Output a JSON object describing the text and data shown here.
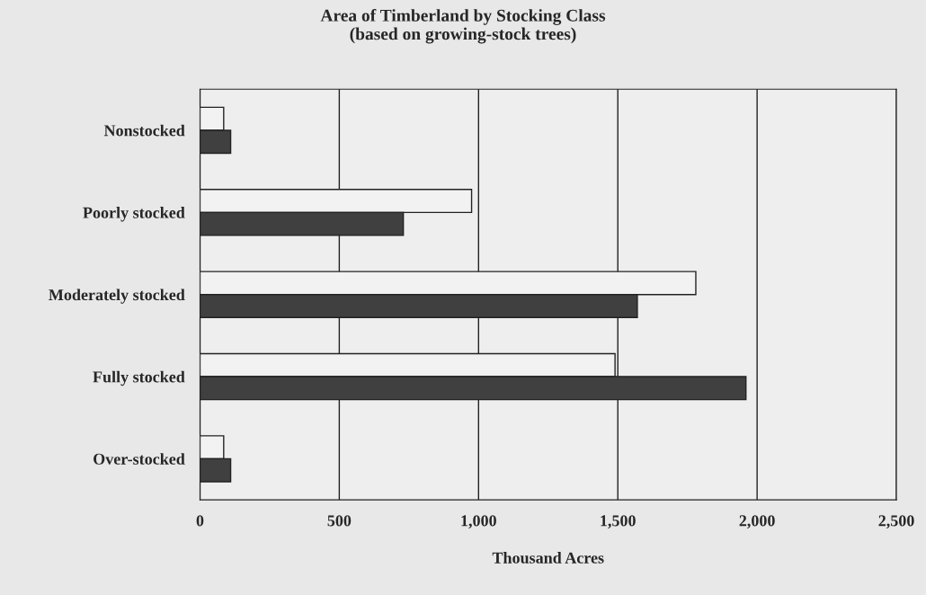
{
  "chart_data": {
    "type": "bar",
    "orientation": "horizontal",
    "title": "Area of Timberland by Stocking Class\n(based on growing-stock trees)",
    "xlabel": "Thousand Acres",
    "categories": [
      "Nonstocked",
      "Poorly stocked",
      "Moderately stocked",
      "Fully stocked",
      "Over-stocked"
    ],
    "series": [
      {
        "color": "#f2f2f2",
        "values": [
          85,
          975,
          1780,
          1490,
          85
        ]
      },
      {
        "color": "#404040",
        "values": [
          110,
          730,
          1570,
          1960,
          110
        ]
      }
    ],
    "xlim": [
      0,
      2500
    ],
    "xticks": [
      0,
      {
        "value": 500,
        "label": "500"
      },
      {
        "value": 1000,
        "label": "1,000"
      },
      {
        "value": 1500,
        "label": "1,500"
      },
      {
        "value": 2000,
        "label": "2,000"
      },
      {
        "value": 2500,
        "label": "2,500"
      }
    ],
    "grid": "x"
  }
}
